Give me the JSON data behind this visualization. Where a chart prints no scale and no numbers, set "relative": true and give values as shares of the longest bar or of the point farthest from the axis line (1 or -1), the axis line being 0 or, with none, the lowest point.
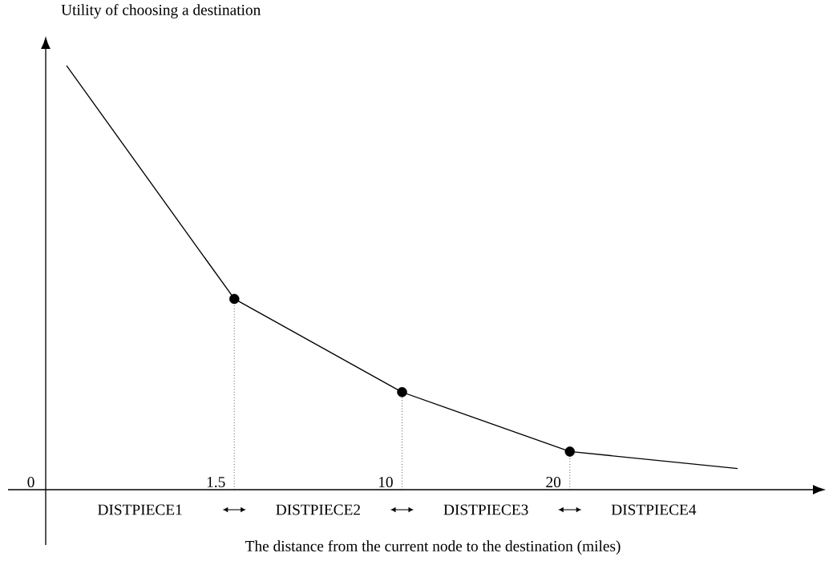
{
  "chart_data": {
    "type": "line",
    "relative": true,
    "ylabel": "Utility of choosing a destination",
    "xlabel": "The distance from the current node to the destination (miles)",
    "categories": [
      null,
      "1.5",
      "10",
      "20",
      null
    ],
    "series": [
      {
        "color": "#000000",
        "marker": "none",
        "values": [
          1,
          0.45,
          0.23,
          0.09,
          0.05
        ]
      },
      {
        "type": "scatter",
        "color": "#000000",
        "marker": "circle",
        "x": [
          "1.5",
          "10",
          "20"
        ],
        "values": [
          0.45,
          0.23,
          0.09
        ]
      }
    ],
    "annotations": [
      "0",
      "DISTPIECE1",
      "DISTPIECE2",
      "DISTPIECE3",
      "DISTPIECE4"
    ]
  }
}
